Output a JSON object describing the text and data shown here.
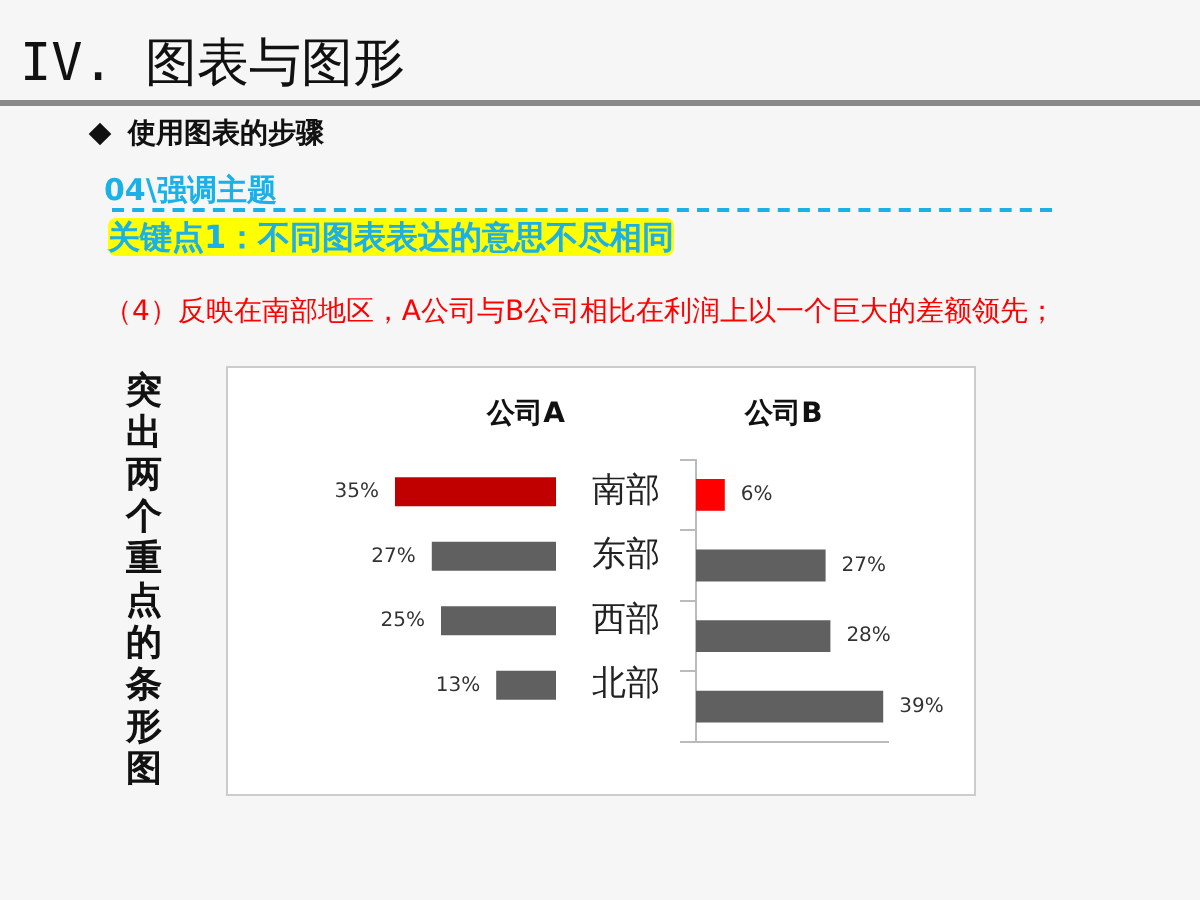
{
  "chart_data": [
    {
      "type": "bar",
      "orientation": "horizontal",
      "title": "公司A",
      "ylabel": "突出两个重点的条形图",
      "annotations": [
        "IV. 图表与图形",
        "使用图表的步骤",
        "04\\强调主题",
        "关键点1：不同图表表达的意思不尽相同",
        "（4）反映在南部地区，A公司与B公司相比在利润上以一个巨大的差额领先；"
      ],
      "categories": [
        "南部",
        "东部",
        "西部",
        "北部"
      ],
      "values": [
        35,
        27,
        25,
        13
      ],
      "value_labels": [
        "35%",
        "27%",
        "25%",
        "13%"
      ],
      "colors": [
        "#c00000",
        "#606060",
        "#606060",
        "#606060"
      ],
      "grid": false,
      "tick_labels": "y"
    },
    {
      "type": "bar",
      "orientation": "horizontal",
      "title": "公司B",
      "categories": [
        null,
        null,
        null,
        null
      ],
      "values": [
        6,
        27,
        28,
        39
      ],
      "value_labels": [
        "6%",
        "27%",
        "28%",
        "39%"
      ],
      "colors": [
        "#ff0000",
        "#606060",
        "#606060",
        "#606060"
      ],
      "grid": false,
      "tick_labels": false
    }
  ]
}
